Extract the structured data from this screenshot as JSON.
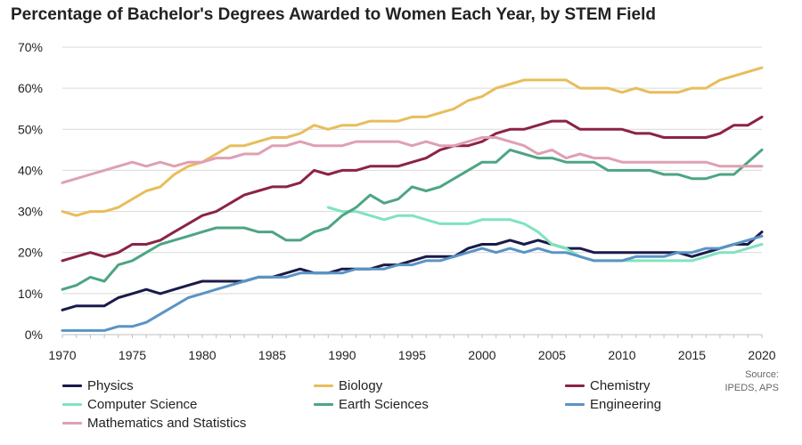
{
  "chart_data": {
    "type": "line",
    "title": "Percentage of Bachelor's Degrees Awarded to Women Each Year, by STEM Field",
    "xlabel": "",
    "ylabel": "",
    "xlim": [
      1970,
      2020
    ],
    "ylim": [
      0,
      70
    ],
    "x_ticks": [
      "1970",
      "1975",
      "1980",
      "1985",
      "1990",
      "1995",
      "2000",
      "2005",
      "2010",
      "2015",
      "2020"
    ],
    "y_ticks": [
      "0%",
      "10%",
      "20%",
      "30%",
      "40%",
      "50%",
      "60%",
      "70%"
    ],
    "grid": "horizontal",
    "legend_position": "bottom",
    "source_line1": "Source:",
    "source_line2": "IPEDS, APS",
    "series": [
      {
        "name": "Physics",
        "color": "#1a1a4a",
        "x_start": 1970,
        "values": [
          6,
          7,
          7,
          7,
          9,
          10,
          11,
          10,
          11,
          12,
          13,
          13,
          13,
          13,
          14,
          14,
          15,
          16,
          15,
          15,
          16,
          16,
          16,
          17,
          17,
          18,
          19,
          19,
          19,
          21,
          22,
          22,
          23,
          22,
          23,
          22,
          21,
          21,
          20,
          20,
          20,
          20,
          20,
          20,
          20,
          19,
          20,
          21,
          22,
          22,
          25
        ]
      },
      {
        "name": "Biology",
        "color": "#e8bd5c",
        "x_start": 1970,
        "values": [
          30,
          29,
          30,
          30,
          31,
          33,
          35,
          36,
          39,
          41,
          42,
          44,
          46,
          46,
          47,
          48,
          48,
          49,
          51,
          50,
          51,
          51,
          52,
          52,
          52,
          53,
          53,
          54,
          55,
          57,
          58,
          60,
          61,
          62,
          62,
          62,
          62,
          60,
          60,
          60,
          59,
          60,
          59,
          59,
          59,
          60,
          60,
          62,
          63,
          64,
          65
        ]
      },
      {
        "name": "Chemistry",
        "color": "#8b2346",
        "x_start": 1970,
        "values": [
          18,
          19,
          20,
          19,
          20,
          22,
          22,
          23,
          25,
          27,
          29,
          30,
          32,
          34,
          35,
          36,
          36,
          37,
          40,
          39,
          40,
          40,
          41,
          41,
          41,
          42,
          43,
          45,
          46,
          46,
          47,
          49,
          50,
          50,
          51,
          52,
          52,
          50,
          50,
          50,
          50,
          49,
          49,
          48,
          48,
          48,
          48,
          49,
          51,
          51,
          53
        ]
      },
      {
        "name": "Computer Science",
        "color": "#7fe3bf",
        "x_start": 1989,
        "values": [
          31,
          30,
          30,
          29,
          28,
          29,
          29,
          28,
          27,
          27,
          27,
          28,
          28,
          28,
          27,
          25,
          22,
          21,
          19,
          18,
          18,
          18,
          18,
          18,
          18,
          18,
          18,
          19,
          20,
          20,
          21,
          22
        ]
      },
      {
        "name": "Earth Sciences",
        "color": "#4da582",
        "x_start": 1970,
        "values": [
          11,
          12,
          14,
          13,
          17,
          18,
          20,
          22,
          23,
          24,
          25,
          26,
          26,
          26,
          25,
          25,
          23,
          23,
          25,
          26,
          29,
          31,
          34,
          32,
          33,
          36,
          35,
          36,
          38,
          40,
          42,
          42,
          45,
          44,
          43,
          43,
          42,
          42,
          42,
          40,
          40,
          40,
          40,
          39,
          39,
          38,
          38,
          39,
          39,
          42,
          45
        ]
      },
      {
        "name": "Engineering",
        "color": "#5a94c4",
        "x_start": 1970,
        "values": [
          1,
          1,
          1,
          1,
          2,
          2,
          3,
          5,
          7,
          9,
          10,
          11,
          12,
          13,
          14,
          14,
          14,
          15,
          15,
          15,
          15,
          16,
          16,
          16,
          17,
          17,
          18,
          18,
          19,
          20,
          21,
          20,
          21,
          20,
          21,
          20,
          20,
          19,
          18,
          18,
          18,
          19,
          19,
          19,
          20,
          20,
          21,
          21,
          22,
          23,
          24
        ]
      },
      {
        "name": "Mathematics and Statistics",
        "color": "#dea0b4",
        "x_start": 1970,
        "values": [
          37,
          38,
          39,
          40,
          41,
          42,
          41,
          42,
          41,
          42,
          42,
          43,
          43,
          44,
          44,
          46,
          46,
          47,
          46,
          46,
          46,
          47,
          47,
          47,
          47,
          46,
          47,
          46,
          46,
          47,
          48,
          48,
          47,
          46,
          44,
          45,
          43,
          44,
          43,
          43,
          42,
          42,
          42,
          42,
          42,
          42,
          42,
          41,
          41,
          41,
          41
        ]
      }
    ]
  }
}
